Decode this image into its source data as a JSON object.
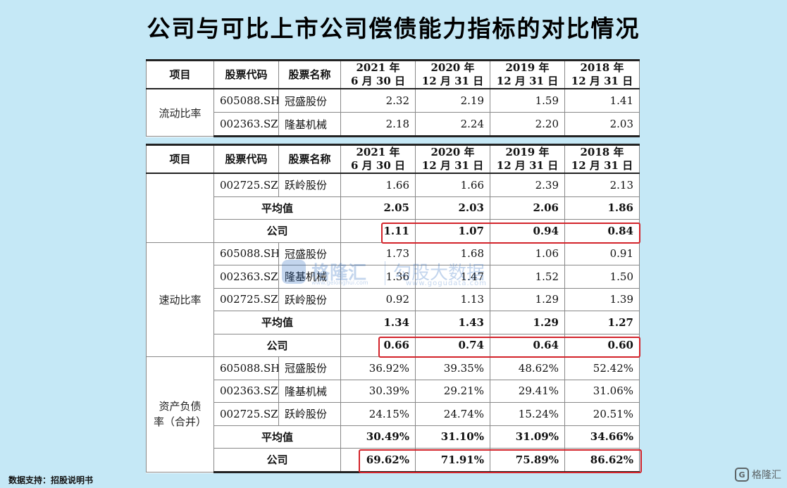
{
  "title": "公司与可比上市公司偿债能力指标的对比情况",
  "header": {
    "item": "项目",
    "code": "股票代码",
    "name": "股票名称",
    "p1": "2021 年\n6 月 30 日",
    "p2": "2020 年\n12 月 31 日",
    "p3": "2019 年\n12 月 31 日",
    "p4": "2018 年\n12 月 31 日"
  },
  "table1": {
    "category": "流动比率",
    "rows": [
      {
        "code": "605088.SH",
        "name": "冠盛股份",
        "v": [
          "2.32",
          "2.19",
          "1.59",
          "1.41"
        ]
      },
      {
        "code": "002363.SZ",
        "name": "隆基机械",
        "v": [
          "2.18",
          "2.24",
          "2.20",
          "2.03"
        ]
      }
    ]
  },
  "table2": {
    "current_cont": {
      "row": {
        "code": "002725.SZ",
        "name": "跃岭股份",
        "v": [
          "1.66",
          "1.66",
          "2.39",
          "2.13"
        ]
      },
      "avg": {
        "label": "平均值",
        "v": [
          "2.05",
          "2.03",
          "2.06",
          "1.86"
        ]
      },
      "company": {
        "label": "公司",
        "v": [
          "1.11",
          "1.07",
          "0.94",
          "0.84"
        ]
      }
    },
    "quick": {
      "category": "速动比率",
      "rows": [
        {
          "code": "605088.SH",
          "name": "冠盛股份",
          "v": [
            "1.73",
            "1.68",
            "1.06",
            "0.91"
          ]
        },
        {
          "code": "002363.SZ",
          "name": "隆基机械",
          "v": [
            "1.36",
            "1.47",
            "1.52",
            "1.50"
          ]
        },
        {
          "code": "002725.SZ",
          "name": "跃岭股份",
          "v": [
            "0.92",
            "1.13",
            "1.29",
            "1.39"
          ]
        }
      ],
      "avg": {
        "label": "平均值",
        "v": [
          "1.34",
          "1.43",
          "1.29",
          "1.27"
        ]
      },
      "company": {
        "label": "公司",
        "v": [
          "0.66",
          "0.74",
          "0.64",
          "0.60"
        ]
      }
    },
    "debt": {
      "category": "资产负债\n率（合并）",
      "rows": [
        {
          "code": "605088.SH",
          "name": "冠盛股份",
          "v": [
            "36.92%",
            "39.35%",
            "48.62%",
            "52.42%"
          ]
        },
        {
          "code": "002363.SZ",
          "name": "隆基机械",
          "v": [
            "30.39%",
            "29.21%",
            "29.41%",
            "31.06%"
          ]
        },
        {
          "code": "002725.SZ",
          "name": "跃岭股份",
          "v": [
            "24.15%",
            "24.74%",
            "15.24%",
            "20.51%"
          ]
        }
      ],
      "avg": {
        "label": "平均值",
        "v": [
          "30.49%",
          "31.10%",
          "31.09%",
          "34.66%"
        ]
      },
      "company": {
        "label": "公司",
        "v": [
          "69.62%",
          "71.91%",
          "75.89%",
          "86.62%"
        ]
      }
    }
  },
  "watermark": {
    "brand": "格隆汇",
    "url1": "www.gelonghui.com",
    "brand2": "勾股大数据",
    "url2": "www.gogudata.com"
  },
  "source": "数据支持：招股说明书",
  "corner_brand": "格隆汇",
  "corner_icon_glyph": "G",
  "colors": {
    "background": "#c5e8f6",
    "highlight": "#d3232a"
  }
}
